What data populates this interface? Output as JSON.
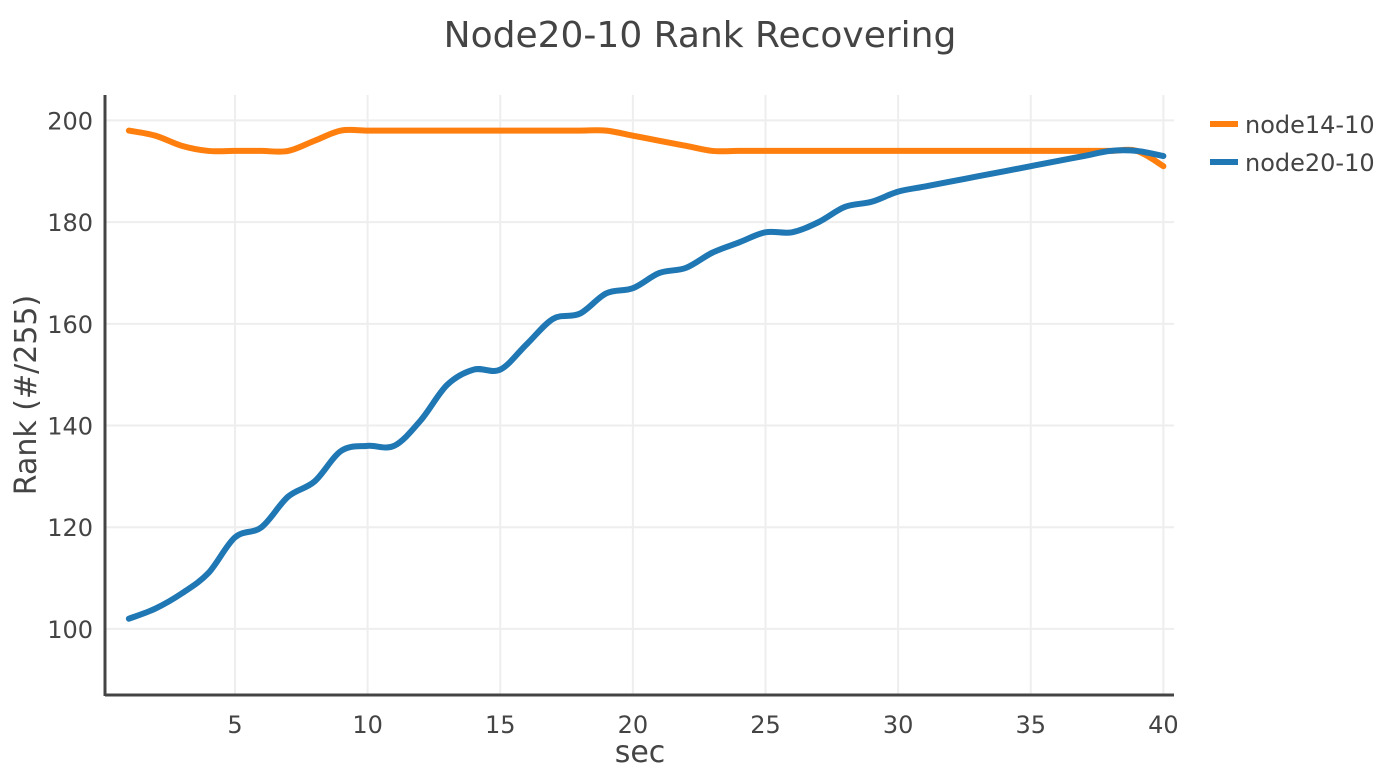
{
  "chart_data": {
    "type": "line",
    "title": "Node20-10 Rank Recovering",
    "xlabel": "sec",
    "ylabel": "Rank (#/255)",
    "xlim": [
      0.1,
      40.4
    ],
    "ylim": [
      87,
      205
    ],
    "xticks": [
      5,
      10,
      15,
      20,
      25,
      30,
      35,
      40
    ],
    "yticks": [
      100,
      120,
      140,
      160,
      180,
      200
    ],
    "grid": true,
    "legend_position": "top-right",
    "x": [
      1,
      2,
      3,
      4,
      5,
      6,
      7,
      8,
      9,
      10,
      11,
      12,
      13,
      14,
      15,
      16,
      17,
      18,
      19,
      20,
      21,
      22,
      23,
      24,
      25,
      26,
      27,
      28,
      29,
      30,
      31,
      32,
      33,
      34,
      35,
      36,
      37,
      38,
      39,
      40
    ],
    "series": [
      {
        "name": "node14-10",
        "color": "#ff7f0e",
        "values": [
          198,
          197,
          195,
          194,
          194,
          194,
          194,
          196,
          198,
          198,
          198,
          198,
          198,
          198,
          198,
          198,
          198,
          198,
          198,
          197,
          196,
          195,
          194,
          194,
          194,
          194,
          194,
          194,
          194,
          194,
          194,
          194,
          194,
          194,
          194,
          194,
          194,
          194,
          194,
          191
        ]
      },
      {
        "name": "node20-10",
        "color": "#1f77b4",
        "values": [
          102,
          104,
          107,
          111,
          118,
          120,
          126,
          129,
          135,
          136,
          136,
          141,
          148,
          151,
          151,
          156,
          161,
          162,
          166,
          167,
          170,
          171,
          174,
          176,
          178,
          178,
          180,
          183,
          184,
          186,
          187,
          188,
          189,
          190,
          191,
          192,
          193,
          194,
          194,
          193
        ]
      }
    ]
  }
}
